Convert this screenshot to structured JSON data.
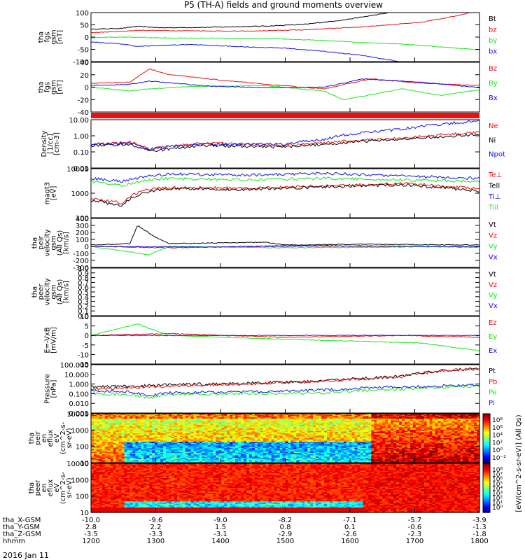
{
  "title": "P5 (TH-A) fields and ground moments overview",
  "date_label": "2016 Jan 11",
  "colors": {
    "black": "#000000",
    "red": "#e81010",
    "green": "#18e818",
    "blue": "#1010e8"
  },
  "chart_data": [
    {
      "type": "line",
      "ylabel": [
        "tha",
        "fgs",
        "gsm",
        "[nT]"
      ],
      "ylim": [
        -100,
        100
      ],
      "yticks": [
        "100",
        "50",
        "0",
        "-50",
        "-100"
      ],
      "series": [
        {
          "name": "Bt",
          "color": "black",
          "x": [
            0,
            0.08,
            0.12,
            0.18,
            0.3,
            0.45,
            0.55,
            0.65,
            0.75,
            0.8
          ],
          "y": [
            32,
            36,
            44,
            38,
            40,
            45,
            52,
            70,
            95,
            110
          ]
        },
        {
          "name": "bz",
          "color": "red",
          "x": [
            0,
            0.08,
            0.13,
            0.25,
            0.4,
            0.55,
            0.7,
            0.85,
            0.95,
            1.0
          ],
          "y": [
            18,
            24,
            28,
            26,
            24,
            30,
            42,
            60,
            90,
            110
          ]
        },
        {
          "name": "by",
          "color": "green",
          "x": [
            0,
            0.1,
            0.2,
            0.35,
            0.5,
            0.6,
            0.7,
            0.8,
            0.9,
            1.0
          ],
          "y": [
            -2,
            0,
            -4,
            -5,
            -8,
            -14,
            -22,
            -28,
            -40,
            -52
          ]
        },
        {
          "name": "bx",
          "color": "blue",
          "x": [
            0,
            0.08,
            0.12,
            0.25,
            0.4,
            0.5,
            0.6,
            0.7,
            0.8
          ],
          "y": [
            -20,
            -28,
            -38,
            -30,
            -40,
            -45,
            -58,
            -75,
            -102
          ]
        }
      ]
    },
    {
      "type": "line",
      "ylabel": [
        "tha",
        "fgs",
        "gsm",
        "[nT]"
      ],
      "ylim": [
        -50,
        40
      ],
      "yticks": [
        "40",
        "20",
        "0",
        "-20",
        "-40"
      ],
      "series": [
        {
          "name": "Bz",
          "color": "red",
          "x": [
            0,
            0.1,
            0.15,
            0.2,
            0.3,
            0.45,
            0.6,
            0.72,
            0.85,
            1.0
          ],
          "y": [
            2,
            4,
            28,
            18,
            10,
            0,
            -8,
            10,
            2,
            -2
          ]
        },
        {
          "name": "By",
          "color": "green",
          "x": [
            0,
            0.1,
            0.15,
            0.25,
            0.45,
            0.6,
            0.65,
            0.8,
            0.9,
            1.0
          ],
          "y": [
            -5,
            -12,
            -8,
            -4,
            -2,
            -12,
            -28,
            -8,
            -20,
            -10
          ]
        },
        {
          "name": "Bx",
          "color": "blue",
          "x": [
            0,
            0.1,
            0.15,
            0.3,
            0.45,
            0.6,
            0.7,
            0.85,
            1.0
          ],
          "y": [
            -2,
            0,
            6,
            -3,
            -6,
            -5,
            10,
            4,
            -6
          ]
        }
      ]
    },
    {
      "type": "line",
      "ylabel": [
        "Density",
        "[1/cc]",
        "[cm-3]"
      ],
      "ylim": [
        0.01,
        10
      ],
      "yscale": "log",
      "yticks": [
        "10.00",
        "1.00",
        "0.10",
        "0.01"
      ],
      "series": [
        {
          "name": "Ne",
          "color": "red",
          "x": [
            0,
            0.1,
            0.15,
            0.3,
            0.5,
            0.6,
            0.8,
            1.0
          ],
          "y": [
            0.3,
            0.4,
            0.15,
            0.35,
            0.25,
            0.35,
            0.7,
            1.6
          ]
        },
        {
          "name": "Ni",
          "color": "black",
          "x": [
            0,
            0.1,
            0.15,
            0.3,
            0.5,
            0.6,
            0.8,
            1.0
          ],
          "y": [
            0.25,
            0.3,
            0.1,
            0.25,
            0.2,
            0.3,
            0.6,
            1.2
          ]
        },
        {
          "name": "Npot",
          "color": "blue",
          "x": [
            0,
            0.1,
            0.15,
            0.3,
            0.5,
            0.6,
            0.8,
            1.0
          ],
          "y": [
            0.3,
            0.35,
            0.15,
            0.3,
            0.3,
            0.6,
            2.5,
            8
          ]
        }
      ]
    },
    {
      "type": "line",
      "ylabel": [
        "magt3",
        "[eV]"
      ],
      "ylim": [
        100,
        10000
      ],
      "yscale": "log",
      "yticks": [
        "10000",
        "1000",
        "100"
      ],
      "series": [
        {
          "name": "Te⊥",
          "color": "red",
          "x": [
            0,
            0.08,
            0.15,
            0.2,
            0.4,
            0.6,
            0.8,
            1.0
          ],
          "y": [
            600,
            400,
            1500,
            1700,
            1600,
            2000,
            2500,
            1500
          ]
        },
        {
          "name": "Tell",
          "color": "black",
          "x": [
            0,
            0.08,
            0.15,
            0.2,
            0.4,
            0.6,
            0.8,
            1.0
          ],
          "y": [
            500,
            300,
            1200,
            1500,
            1400,
            1800,
            2200,
            1200
          ]
        },
        {
          "name": "Ti⊥",
          "color": "blue",
          "x": [
            0,
            0.08,
            0.15,
            0.2,
            0.4,
            0.6,
            0.8,
            1.0
          ],
          "y": [
            4000,
            3000,
            5000,
            6000,
            5500,
            6500,
            5000,
            4000
          ]
        },
        {
          "name": "Till",
          "color": "green",
          "x": [
            0,
            0.08,
            0.15,
            0.2,
            0.4,
            0.6,
            0.8,
            1.0
          ],
          "y": [
            3000,
            2000,
            3500,
            4000,
            3500,
            4000,
            3500,
            3000
          ]
        }
      ]
    },
    {
      "type": "line",
      "ylabel": [
        "tha",
        "peir",
        "velocity",
        "gsm",
        "(All Qs)",
        "[km/s]"
      ],
      "ylim": [
        -300,
        400
      ],
      "yticks": [
        "400",
        "300",
        "200",
        "100",
        "0",
        "-100",
        "-200",
        "-300"
      ],
      "series": [
        {
          "name": "Vt",
          "color": "black",
          "x": [
            0,
            0.1,
            0.12,
            0.16,
            0.2,
            0.45,
            0.5,
            0.7,
            1.0
          ],
          "y": [
            20,
            40,
            300,
            150,
            40,
            60,
            20,
            30,
            20
          ]
        },
        {
          "name": "Vz",
          "color": "red",
          "x": [
            0,
            0.2,
            0.5,
            1.0
          ],
          "y": [
            0,
            -20,
            10,
            -10
          ]
        },
        {
          "name": "Vy",
          "color": "green",
          "x": [
            0,
            0.15,
            0.2,
            0.5,
            1.0
          ],
          "y": [
            0,
            -120,
            0,
            -20,
            0
          ]
        },
        {
          "name": "Vx",
          "color": "blue",
          "x": [
            0,
            0.3,
            0.6,
            1.0
          ],
          "y": [
            0,
            -10,
            10,
            -5
          ]
        }
      ]
    },
    {
      "type": "line",
      "ylabel": [
        "tha",
        "peer",
        "velocity",
        "gsm",
        "(All Qs)",
        "[km/s]"
      ],
      "ylim": [
        0,
        1
      ],
      "yticks": [
        "1.0",
        "0.9",
        "0.8",
        "0.7",
        "0.6",
        "0.5",
        "0.4",
        "0.3",
        "0.2",
        "0.1",
        "0.0"
      ],
      "series": [
        {
          "name": "Vt",
          "color": "black",
          "x": [],
          "y": []
        },
        {
          "name": "Vz",
          "color": "red",
          "x": [],
          "y": []
        },
        {
          "name": "Vy",
          "color": "green",
          "x": [],
          "y": []
        },
        {
          "name": "Vx",
          "color": "blue",
          "x": [],
          "y": []
        }
      ]
    },
    {
      "type": "line",
      "ylabel": [
        "E=-VxB",
        "[mV/m]"
      ],
      "ylim": [
        -15,
        10
      ],
      "yticks": [
        "10",
        "5",
        "0",
        "-5",
        "-10",
        "-15"
      ],
      "series": [
        {
          "name": "Ez",
          "color": "red",
          "x": [
            0,
            0.2,
            0.5,
            0.8,
            1.0
          ],
          "y": [
            0,
            1,
            -1,
            0,
            -1
          ]
        },
        {
          "name": "Ey",
          "color": "green",
          "x": [
            0,
            0.12,
            0.2,
            0.5,
            0.85,
            1.0
          ],
          "y": [
            0,
            6,
            0,
            -2,
            -4,
            -8
          ]
        },
        {
          "name": "Ex",
          "color": "blue",
          "x": [
            0,
            0.5,
            1.0
          ],
          "y": [
            0,
            0,
            0
          ]
        }
      ]
    },
    {
      "type": "line",
      "ylabel": [
        "Pressure",
        "[nPa]"
      ],
      "ylim": [
        0.001,
        100
      ],
      "yscale": "log",
      "yticks": [
        "100.000",
        "10.000",
        "1.000",
        "0.100",
        "0.010",
        "0.001"
      ],
      "series": [
        {
          "name": "Pt",
          "color": "black",
          "x": [
            0,
            0.1,
            0.2,
            0.4,
            0.6,
            0.8,
            1.0
          ],
          "y": [
            0.5,
            0.6,
            0.8,
            1.2,
            2,
            6,
            40
          ]
        },
        {
          "name": "Pb",
          "color": "red",
          "x": [
            0,
            0.1,
            0.2,
            0.4,
            0.6,
            0.8,
            1.0
          ],
          "y": [
            0.3,
            0.4,
            0.6,
            1.0,
            1.8,
            5,
            38
          ]
        },
        {
          "name": "Pe",
          "color": "green",
          "x": [
            0,
            0.1,
            0.15,
            0.2,
            0.4,
            0.6,
            0.8,
            1.0
          ],
          "y": [
            0.1,
            0.08,
            0.03,
            0.08,
            0.1,
            0.12,
            0.3,
            0.6
          ]
        },
        {
          "name": "Pi",
          "color": "blue",
          "x": [
            0,
            0.1,
            0.15,
            0.2,
            0.4,
            0.6,
            0.8,
            1.0
          ],
          "y": [
            0.2,
            0.15,
            0.05,
            0.12,
            0.15,
            0.25,
            0.5,
            0.8
          ]
        }
      ]
    },
    {
      "type": "heatmap",
      "ylabel": [
        "tha",
        "peir",
        "en",
        "eflux",
        "eV",
        "(cm^2-s-",
        "sr-eV)"
      ],
      "ylim": [
        5,
        25000
      ],
      "yscale": "log",
      "yticks": [
        "10000",
        "1000",
        "100",
        "10"
      ],
      "colorbar_ticks": [
        "10⁸",
        "10⁶",
        "10⁴",
        "10²",
        "10⁰",
        "10⁻²"
      ]
    },
    {
      "type": "heatmap",
      "ylabel": [
        "tha",
        "peer",
        "en",
        "eflux",
        "eV",
        "(cm^2-s-",
        "sr-eV)"
      ],
      "ylim": [
        5,
        25000
      ],
      "yscale": "log",
      "yticks": [
        "10000",
        "1000",
        "100",
        "10"
      ],
      "colorbar_ticks": [
        "10⁸",
        "10⁷",
        "10⁶",
        "10⁵",
        "10⁴",
        "10³",
        "10²",
        "10¹",
        "10⁰"
      ]
    }
  ],
  "colorbar_label": "[eV/(cm^2-s-sr-eV)] (All Qs)",
  "x_axis": {
    "rows": [
      {
        "label": "tha_X-GSM",
        "values": [
          "-10.0",
          "-9.6",
          "-9.0",
          "-8.2",
          "-7.1",
          "-5.7",
          "-3.9"
        ]
      },
      {
        "label": "tha_Y-GSM",
        "values": [
          "2.8",
          "2.2",
          "1.5",
          "0.8",
          "0.1",
          "-0.6",
          "-1.3"
        ]
      },
      {
        "label": "tha_Z-GSM",
        "values": [
          "-3.5",
          "-3.3",
          "-3.1",
          "-2.9",
          "-2.6",
          "-2.3",
          "-1.8"
        ]
      },
      {
        "label": "hhmm",
        "values": [
          "1200",
          "1300",
          "1400",
          "1500",
          "1600",
          "1700",
          "1800"
        ]
      }
    ]
  }
}
